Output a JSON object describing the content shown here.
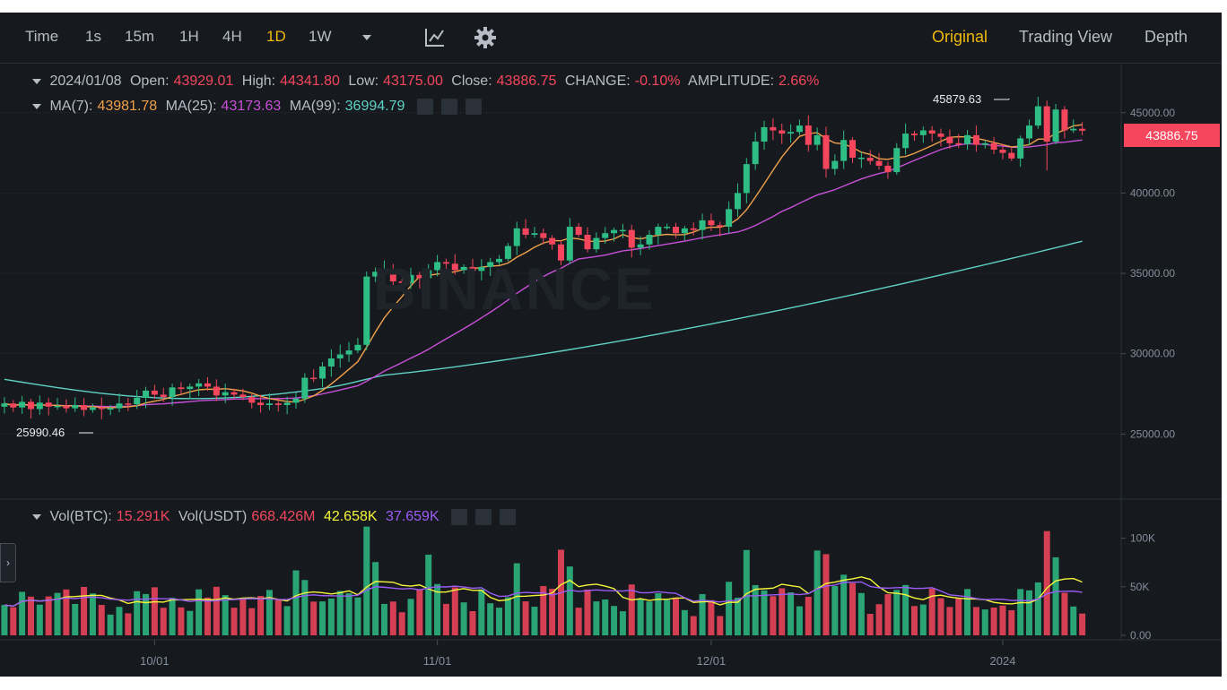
{
  "toolbar": {
    "intervals": [
      "Time",
      "1s",
      "15m",
      "1H",
      "4H",
      "1D",
      "1W"
    ],
    "active_interval": "1D",
    "views": [
      "Original",
      "Trading View",
      "Depth"
    ],
    "active_view": "Original",
    "icons": [
      "chevron-down-icon",
      "indicator-chart-icon",
      "gear-icon"
    ]
  },
  "ohlc": {
    "date": "2024/01/08",
    "open_label": "Open:",
    "open": "43929.01",
    "high_label": "High:",
    "high": "44341.80",
    "low_label": "Low:",
    "low": "43175.00",
    "close_label": "Close:",
    "close": "43886.75",
    "change_label": "CHANGE:",
    "change": "-0.10%",
    "amplitude_label": "AMPLITUDE:",
    "amplitude": "2.66%"
  },
  "ma": {
    "ma7_label": "MA(7):",
    "ma7": "43981.78",
    "ma25_label": "MA(25):",
    "ma25": "43173.63",
    "ma99_label": "MA(99):",
    "ma99": "36994.79"
  },
  "volume": {
    "btc_label": "Vol(BTC):",
    "btc": "15.291K",
    "usdt_label": "Vol(USDT)",
    "usdt": "668.426M",
    "ma1": "42.658K",
    "ma2": "37.659K"
  },
  "current_price": "43886.75",
  "watermark": "BINANCE",
  "colors": {
    "up": "#2ebd85",
    "down": "#f6465d",
    "accent": "#f0b90b",
    "ma7": "#f0a04b",
    "ma25": "#c84fd8",
    "ma99": "#5fd1c6",
    "vol_ma1": "#f5f53a",
    "vol_ma2": "#9b5cf6",
    "background": "#161a1e"
  },
  "chart_data": {
    "type": "candlestick",
    "ylim": [
      21000,
      48000
    ],
    "y_ticks": [
      "45000.00",
      "40000.00",
      "35000.00",
      "30000.00",
      "25000.00"
    ],
    "x_labels": [
      {
        "label": "10/01",
        "date": "2023-10-01"
      },
      {
        "label": "11/01",
        "date": "2023-11-01"
      },
      {
        "label": "12/01",
        "date": "2023-12-01"
      },
      {
        "label": "2024",
        "date": "2024-01-01"
      }
    ],
    "annotations": {
      "high_marker": {
        "label": "45879.63",
        "value": 45879.63
      },
      "low_marker": {
        "label": "25990.46",
        "value": 25990.46
      }
    },
    "closes": [
      26900,
      26650,
      27000,
      26550,
      26950,
      26700,
      26750,
      26600,
      26800,
      26500,
      26650,
      26550,
      26600,
      26900,
      26850,
      27250,
      27700,
      27450,
      27300,
      27900,
      27800,
      27950,
      28150,
      27950,
      27400,
      27600,
      27450,
      27300,
      26950,
      26800,
      26900,
      26800,
      26950,
      27200,
      28500,
      28450,
      29200,
      29700,
      29950,
      30200,
      30550,
      34800,
      35100,
      35300,
      34500,
      34400,
      34900,
      34700,
      35200,
      35700,
      35600,
      35200,
      35400,
      35150,
      35400,
      35700,
      35900,
      36700,
      37800,
      37400,
      37500,
      37200,
      36800,
      35800,
      37900,
      37400,
      36500,
      37200,
      37500,
      37700,
      37700,
      36600,
      36800,
      37400,
      37900,
      37900,
      37500,
      37800,
      37700,
      38300,
      38000,
      37900,
      39000,
      40000,
      41800,
      43200,
      44100,
      43900,
      43700,
      43800,
      44200,
      43000,
      43600,
      41500,
      42000,
      43300,
      42200,
      42200,
      42000,
      41700,
      41300,
      42800,
      43700,
      43600,
      43900,
      43700,
      43500,
      43100,
      43050,
      43600,
      43000,
      43100,
      42700,
      42500,
      42150,
      43400,
      44200,
      45400,
      43200,
      45200,
      43900,
      44000,
      43880
    ],
    "volume_ylim": [
      0,
      120000
    ],
    "volume_ticks": [
      "100K",
      "50K",
      "0.00"
    ]
  }
}
